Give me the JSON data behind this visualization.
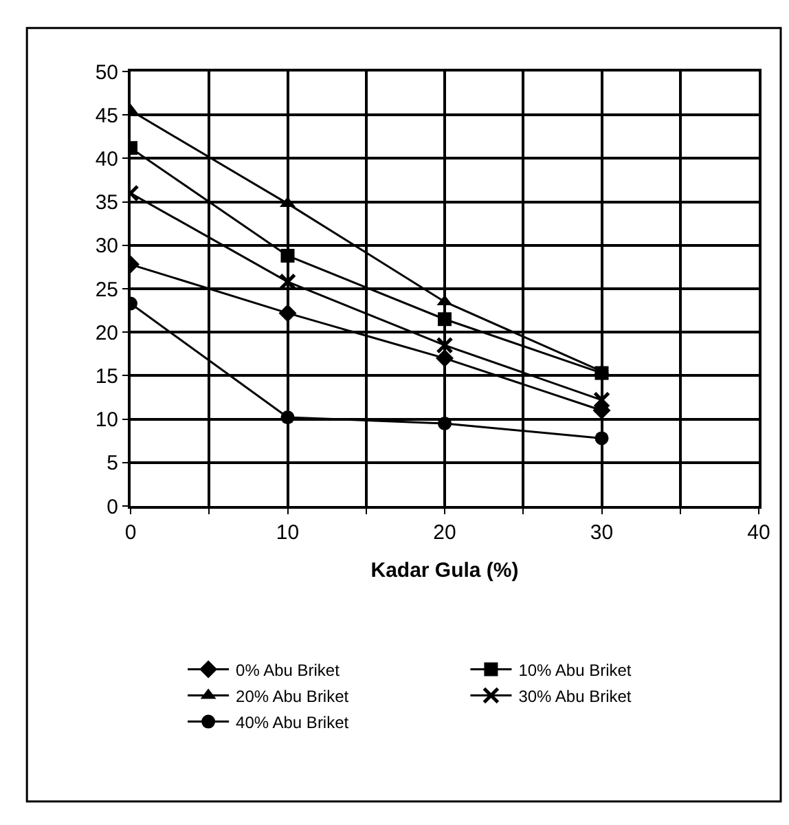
{
  "chart_data": {
    "type": "line",
    "xlabel": "Kadar Gula (%)",
    "x": [
      0,
      10,
      20,
      30
    ],
    "series": [
      {
        "name": "0% Abu Briket",
        "color": "#000000",
        "marker": "diamond",
        "values": [
          27.8,
          22.2,
          17,
          11
        ]
      },
      {
        "name": "10% Abu Briket",
        "color": "#000000",
        "marker": "square",
        "values": [
          41.2,
          28.8,
          21.5,
          15.3
        ]
      },
      {
        "name": "20% Abu Briket",
        "color": "#000000",
        "marker": "triangle",
        "values": [
          45.5,
          34.8,
          23.5,
          15.5
        ]
      },
      {
        "name": "30% Abu Briket",
        "color": "#000000",
        "marker": "cross",
        "values": [
          36,
          25.8,
          18.5,
          12.2
        ]
      },
      {
        "name": "40% Abu Briket",
        "color": "#000000",
        "marker": "circle",
        "values": [
          23.3,
          10.2,
          9.5,
          7.8
        ]
      }
    ],
    "xlim": [
      0,
      40
    ],
    "xticks": [
      0,
      {
        "value": 5,
        "label": null
      },
      10,
      {
        "value": 15,
        "label": null
      },
      20,
      {
        "value": 25,
        "label": null
      },
      30,
      {
        "value": 35,
        "label": null
      },
      40
    ],
    "ylim": [
      0,
      50
    ],
    "yticks": [
      0,
      5,
      10,
      15,
      20,
      25,
      30,
      35,
      40,
      45,
      50
    ],
    "grid": true,
    "legend": "bottom",
    "line_style": "solid"
  }
}
